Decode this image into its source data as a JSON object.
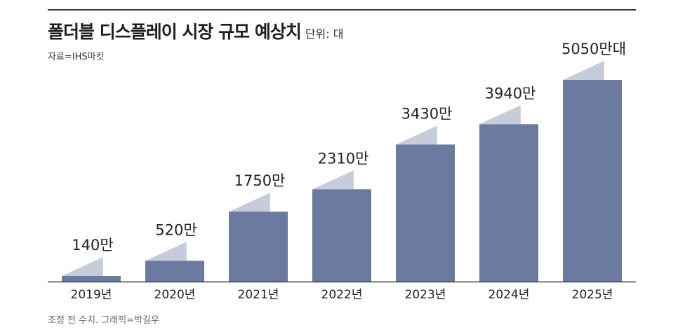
{
  "header": {
    "title": "폴더블 디스플레이 시장 규모 예상치",
    "unit": "단위: 대",
    "source": "자료=IHS마킷"
  },
  "footer": {
    "credit": "조정 전 수치. 그래픽=박길우"
  },
  "colors": {
    "bar": "#6b7aa0",
    "flap": "#c6ccdc",
    "axis": "#444444"
  },
  "chart_data": {
    "type": "bar",
    "categories": [
      "2019년",
      "2020년",
      "2021년",
      "2022년",
      "2023년",
      "2024년",
      "2025년"
    ],
    "values": [
      140,
      520,
      1750,
      2310,
      3430,
      3940,
      5050
    ],
    "data_labels": [
      "140만",
      "520만",
      "1750만",
      "2310만",
      "3430만",
      "3940만",
      "5050만대"
    ],
    "title": "폴더블 디스플레이 시장 규모 예상치",
    "xlabel": "",
    "ylabel": "",
    "grid": false,
    "legend": "none"
  }
}
